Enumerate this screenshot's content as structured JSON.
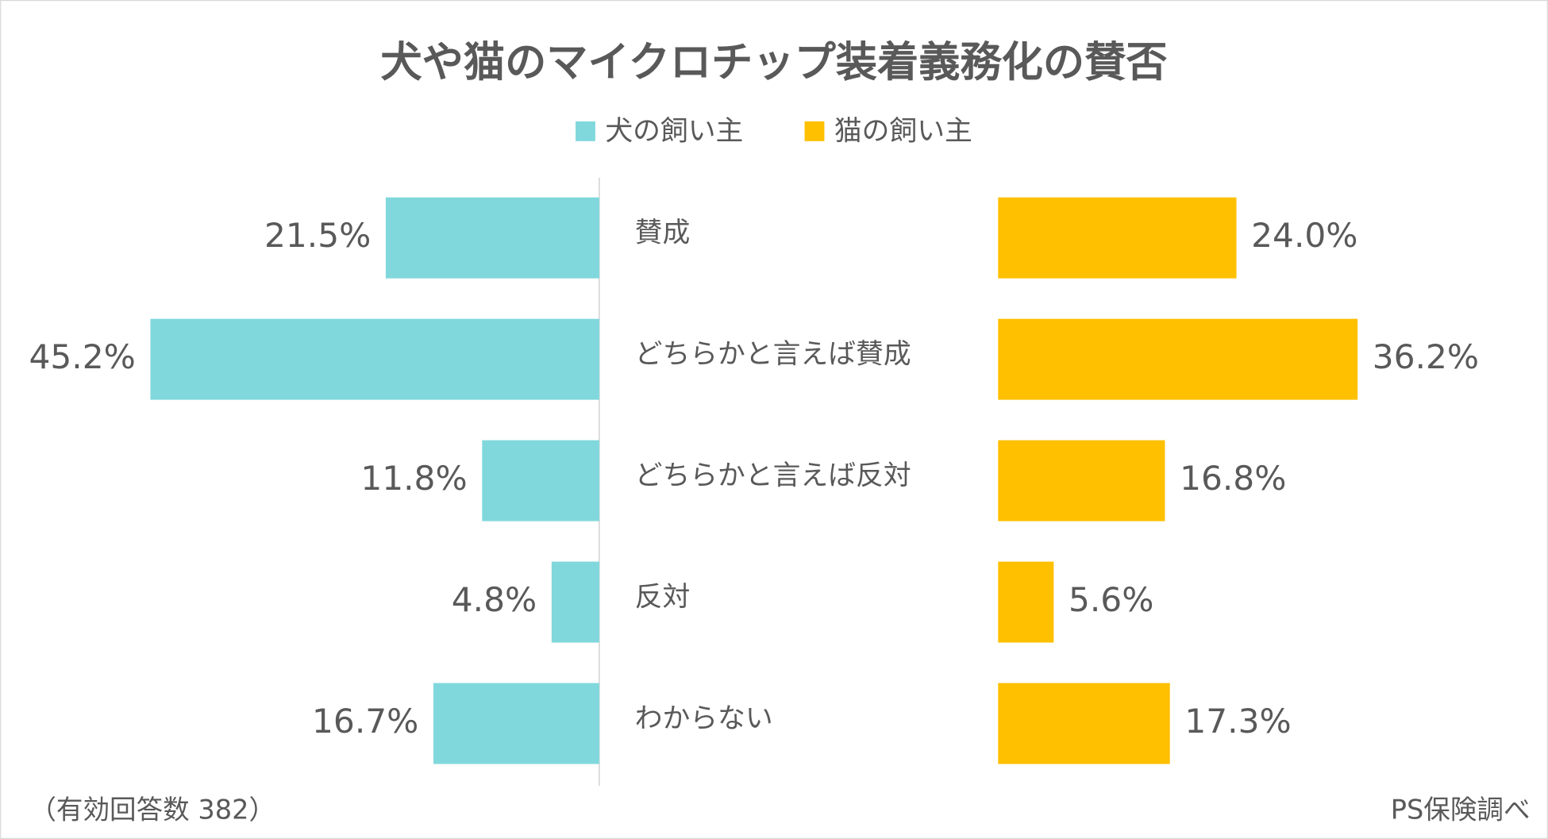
{
  "chart_data": {
    "type": "butterfly-bar",
    "title": "犬や猫のマイクロチップ装着義務化の賛否",
    "categories": [
      "賛成",
      "どちらかと言えば賛成",
      "どちらかと言えば反対",
      "反対",
      "わからない"
    ],
    "series": [
      {
        "name": "犬の飼い主",
        "color": "#80d8dc",
        "values": [
          21.5,
          45.2,
          11.8,
          4.8,
          16.7
        ],
        "value_labels": [
          "21.5%",
          "45.2%",
          "11.8%",
          "4.8%",
          "16.7%"
        ]
      },
      {
        "name": "猫の飼い主",
        "color": "#ffc000",
        "values": [
          24.0,
          36.2,
          16.8,
          5.6,
          17.3
        ],
        "value_labels": [
          "24.0%",
          "36.2%",
          "16.8%",
          "5.6%",
          "17.3%"
        ]
      }
    ],
    "footnote_left": "（有効回答数 382）",
    "footnote_right": "PS保険調べ"
  }
}
